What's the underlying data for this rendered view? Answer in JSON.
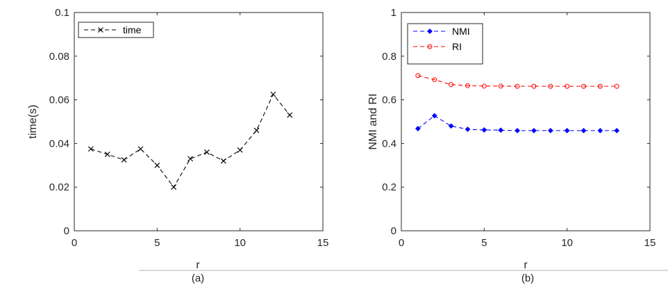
{
  "chart_data": [
    {
      "type": "line",
      "caption": "(a)",
      "xlabel": "r",
      "ylabel": "time(s)",
      "xlim": [
        0,
        15
      ],
      "ylim": [
        0,
        0.1
      ],
      "xticks": [
        "0",
        "5",
        "10",
        "15"
      ],
      "yticks": [
        "0",
        "0.02",
        "0.04",
        "0.06",
        "0.08",
        "0.1"
      ],
      "legend_position": "top-left",
      "grid": false,
      "series": [
        {
          "name": "time",
          "color": "#000000",
          "marker": "x",
          "linestyle": "dashed",
          "x": [
            1,
            2,
            3,
            4,
            5,
            6,
            7,
            8,
            9,
            10,
            11,
            12,
            13
          ],
          "y": [
            0.0375,
            0.035,
            0.0325,
            0.0375,
            0.03,
            0.02,
            0.033,
            0.036,
            0.032,
            0.037,
            0.046,
            0.0625,
            0.053
          ]
        }
      ]
    },
    {
      "type": "line",
      "caption": "(b)",
      "xlabel": "r",
      "ylabel": "NMI and RI",
      "xlim": [
        0,
        15
      ],
      "ylim": [
        0,
        1
      ],
      "xticks": [
        "0",
        "5",
        "10",
        "15"
      ],
      "yticks": [
        "0",
        "0.2",
        "0.4",
        "0.6",
        "0.8",
        "1"
      ],
      "legend_position": "top-left",
      "grid": false,
      "series": [
        {
          "name": "NMI",
          "color": "#0000ff",
          "marker": "diamond",
          "linestyle": "dashed",
          "x": [
            1,
            2,
            3,
            4,
            5,
            6,
            7,
            8,
            9,
            10,
            11,
            12,
            13
          ],
          "y": [
            0.468,
            0.527,
            0.48,
            0.465,
            0.462,
            0.461,
            0.459,
            0.459,
            0.459,
            0.459,
            0.459,
            0.459,
            0.459
          ]
        },
        {
          "name": "RI",
          "color": "#ff0000",
          "marker": "circle",
          "linestyle": "dashed",
          "x": [
            1,
            2,
            3,
            4,
            5,
            6,
            7,
            8,
            9,
            10,
            11,
            12,
            13
          ],
          "y": [
            0.711,
            0.692,
            0.67,
            0.665,
            0.663,
            0.663,
            0.662,
            0.662,
            0.662,
            0.662,
            0.662,
            0.662,
            0.662
          ]
        }
      ]
    }
  ]
}
